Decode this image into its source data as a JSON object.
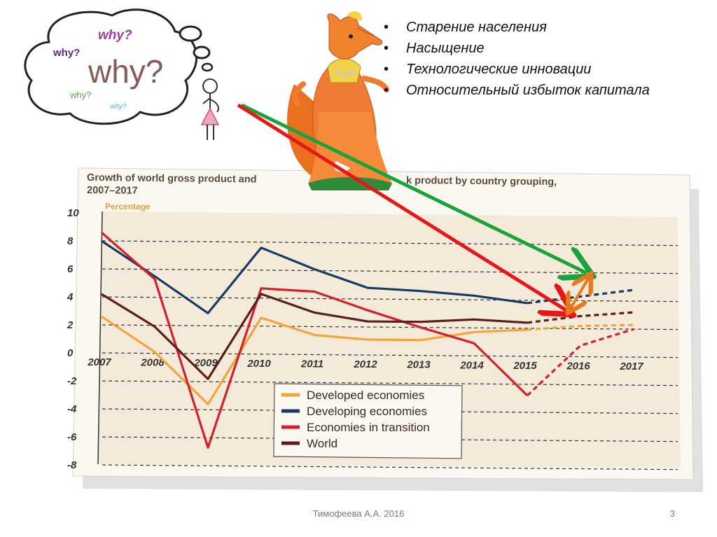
{
  "bullets": [
    "Старение населения",
    "Насыщение",
    "Технологические инновации",
    "Относительный избыток капитала"
  ],
  "thought_bubble": {
    "words": [
      "why?",
      "why?",
      "why?",
      "why?",
      "why?"
    ],
    "colors": [
      "#9a3fa6",
      "#5a2a8a",
      "#8a5a5a",
      "#56a94a",
      "#5aa8d8"
    ]
  },
  "footer": {
    "author": "Тимофеева А.А. 2016",
    "slide_number": "3"
  },
  "colors": {
    "developed": "#f5a43b",
    "developing": "#173a63",
    "transition": "#d61f2a",
    "world": "#5b1e18",
    "arrow_green": "#1aa33a",
    "arrow_red": "#e81616",
    "arrow_orange": "#e87a1e",
    "plot_bg": "#f4ead9"
  },
  "chart_data": {
    "type": "line",
    "title_line1": "Growth of world gross product and",
    "title_line1_right": "k product by country grouping,",
    "title_line2": "2007–2017",
    "ylabel": "Percentage",
    "categories": [
      "2007",
      "2008",
      "2009",
      "2010",
      "2011",
      "2012",
      "2013",
      "2014",
      "2015",
      "2016",
      "2017"
    ],
    "yticks": [
      10,
      8,
      6,
      4,
      2,
      0,
      -2,
      -4,
      -6,
      -8
    ],
    "ylim": [
      -8,
      10
    ],
    "grid": true,
    "legend_position": "bottom-center",
    "forecast_from_index": 8,
    "series": [
      {
        "name": "Developed economies",
        "key": "developed",
        "values": [
          2.6,
          0.1,
          -3.6,
          2.6,
          1.4,
          1.1,
          1.1,
          1.7,
          1.9,
          2.2,
          2.3
        ]
      },
      {
        "name": "Developing economies",
        "key": "developing",
        "values": [
          8.0,
          5.5,
          2.9,
          7.6,
          6.1,
          4.8,
          4.6,
          4.3,
          3.8,
          4.3,
          4.8
        ]
      },
      {
        "name": "Economies in transition",
        "key": "transition",
        "values": [
          8.6,
          5.3,
          -6.7,
          4.7,
          4.5,
          3.2,
          2.0,
          0.9,
          -2.8,
          0.8,
          2.0
        ]
      },
      {
        "name": "World",
        "key": "world",
        "values": [
          4.2,
          1.9,
          -1.8,
          4.3,
          3.0,
          2.4,
          2.4,
          2.6,
          2.4,
          2.9,
          3.2
        ]
      }
    ]
  }
}
